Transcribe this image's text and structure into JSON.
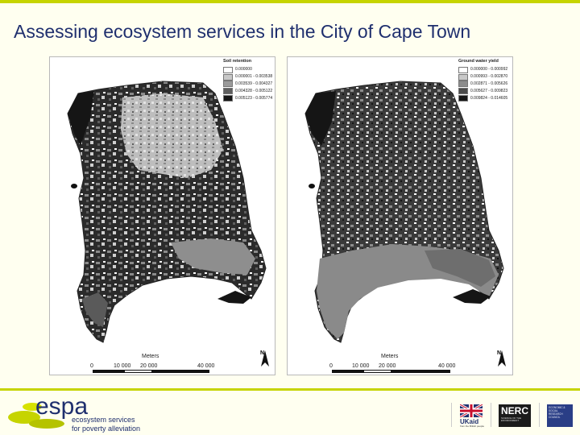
{
  "title": "Assessing ecosystem services in the City of Cape Town",
  "maps": [
    {
      "legend_title": "Soil retention",
      "legend": [
        {
          "label": "0.000000",
          "color": "#ffffff"
        },
        {
          "label": "0.000001 - 0.003538",
          "color": "#c8c8c8"
        },
        {
          "label": "0.003539 - 0.004327",
          "color": "#9a9a9a"
        },
        {
          "label": "0.004328 - 0.005122",
          "color": "#5e5e5e"
        },
        {
          "label": "0.005123 - 0.005774",
          "color": "#151515"
        }
      ],
      "scale_label": "Meters",
      "scale_ticks": [
        "0",
        "10 000",
        "20 000",
        "40 000"
      ],
      "north": "N"
    },
    {
      "legend_title": "Ground water yield",
      "legend": [
        {
          "label": "0.000000 - 0.000992",
          "color": "#ffffff"
        },
        {
          "label": "0.000993 - 0.002870",
          "color": "#c8c8c8"
        },
        {
          "label": "0.002871 - 0.005626",
          "color": "#8c8c8c"
        },
        {
          "label": "0.005627 - 0.009823",
          "color": "#4a4a4a"
        },
        {
          "label": "0.009824 - 0.014605",
          "color": "#151515"
        }
      ],
      "scale_label": "Meters",
      "scale_ticks": [
        "0",
        "10 000",
        "20 000",
        "40 000"
      ],
      "north": "N"
    }
  ],
  "footer": {
    "espa_word": "espa",
    "espa_line1": "ecosystem services",
    "espa_line2": "for poverty alleviation",
    "ukaid": "UKaid",
    "ukaid_sub": "from the British people",
    "nerc": "NERC",
    "nerc_sub": "SCIENCE OF THE ENVIRONMENT",
    "esrc": "ECONOMIC & SOCIAL RESEARCH COUNCIL"
  }
}
